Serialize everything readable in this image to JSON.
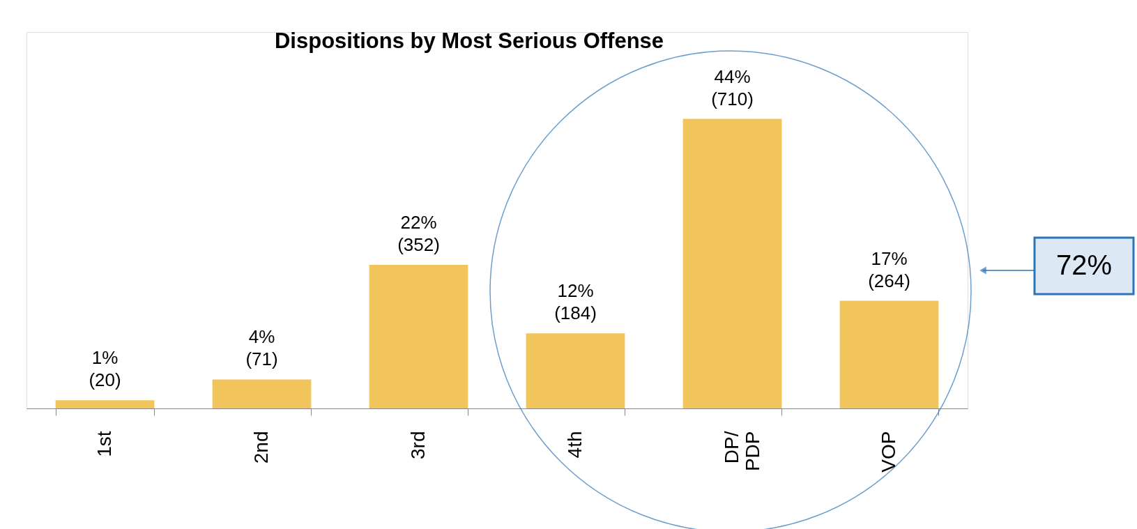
{
  "chart_data": {
    "type": "bar",
    "title": "Dispositions by Most Serious Offense",
    "categories": [
      "1st",
      "2nd",
      "3rd",
      "4th",
      "DP/ PDP",
      "VOP"
    ],
    "values": [
      20,
      71,
      352,
      184,
      710,
      264
    ],
    "value_labels": [
      "1%\n(20)",
      "4%\n(71)",
      "22%\n(352)",
      "12%\n(184)",
      "44%\n(710)",
      "17%\n(264)"
    ],
    "color": "#f2c45c",
    "annotations": [
      "72%"
    ],
    "grid": false,
    "legend": false
  }
}
